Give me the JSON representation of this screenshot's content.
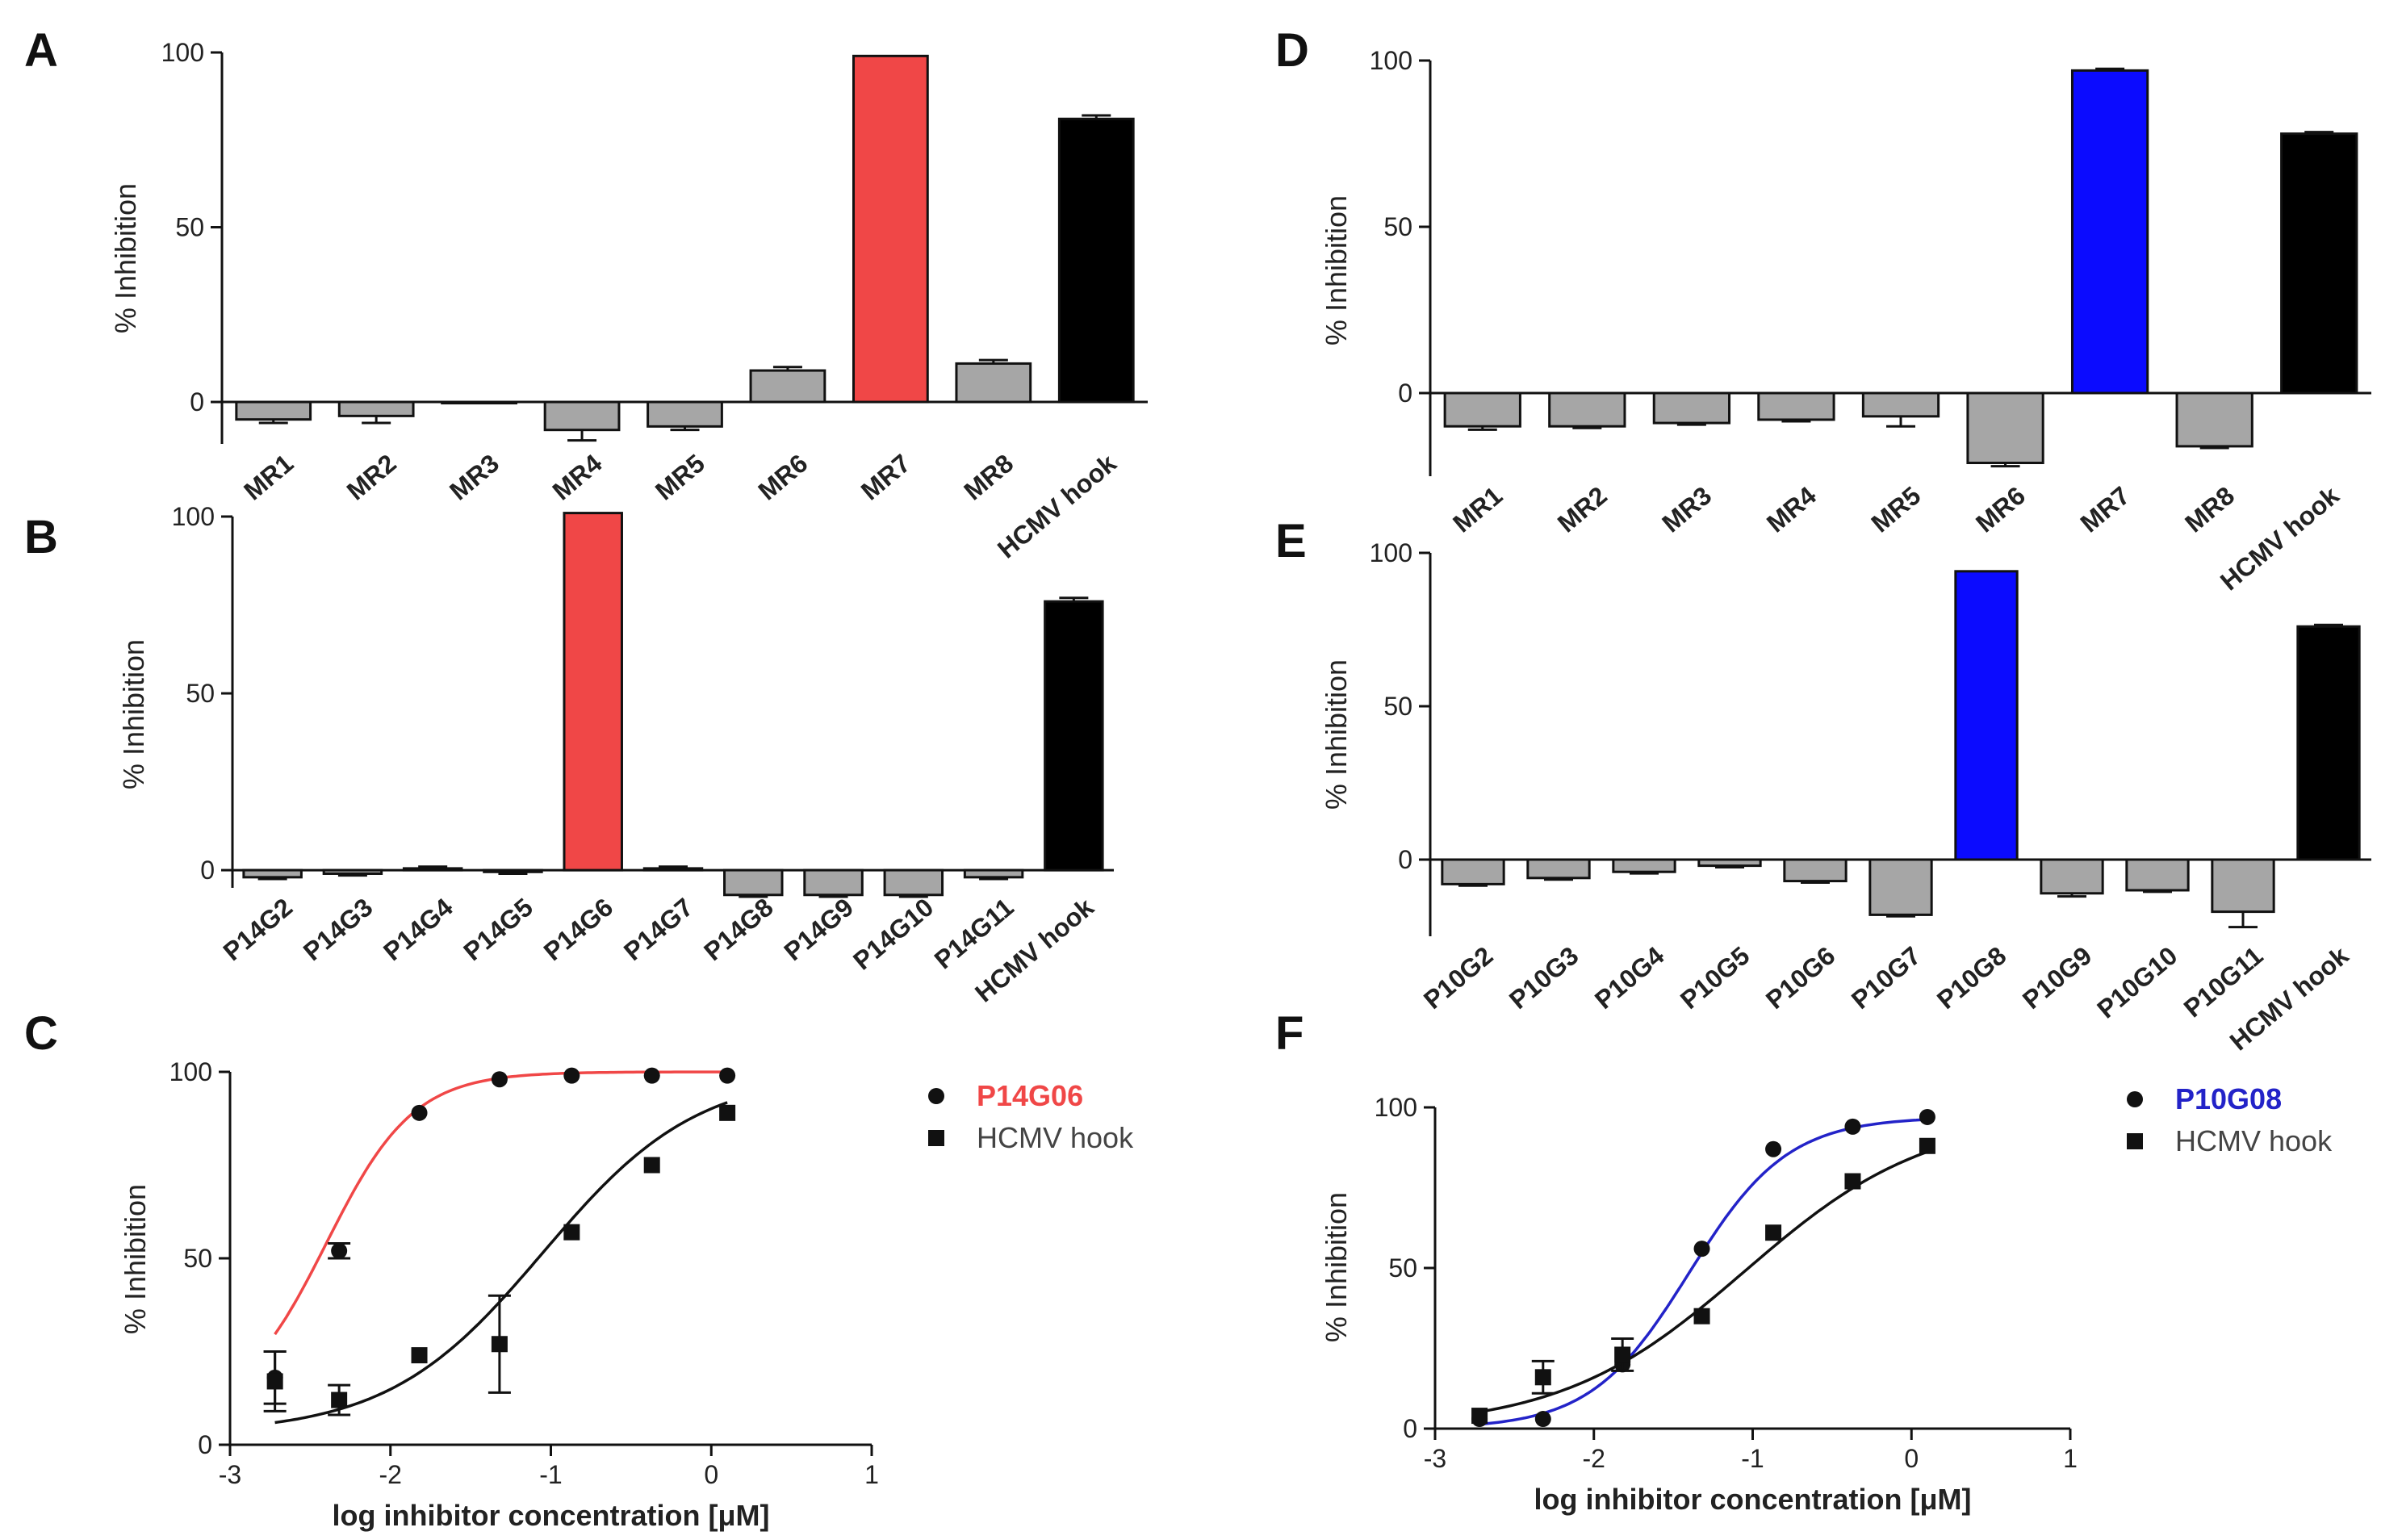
{
  "panels": [
    "A",
    "B",
    "C",
    "D",
    "E",
    "F"
  ],
  "chart_data": [
    {
      "panel": "A",
      "type": "bar",
      "ylabel": "% Inhibition",
      "ylim": [
        -12,
        100
      ],
      "yticks": [
        0,
        50,
        100
      ],
      "categories": [
        "MR1",
        "MR2",
        "MR3",
        "MR4",
        "MR5",
        "MR6",
        "MR7",
        "MR8",
        "HCMV hook"
      ],
      "values": [
        -5,
        -4,
        0,
        -8,
        -7,
        9,
        99,
        11,
        81
      ],
      "errors": [
        1,
        2,
        0,
        3,
        1,
        1,
        0,
        1,
        1
      ],
      "colors": [
        "#a6a6a6",
        "#a6a6a6",
        "#a6a6a6",
        "#a6a6a6",
        "#a6a6a6",
        "#a6a6a6",
        "#f04747",
        "#a6a6a6",
        "#000000"
      ]
    },
    {
      "panel": "B",
      "type": "bar",
      "ylabel": "% Inhibition",
      "ylim": [
        -5,
        100
      ],
      "yticks": [
        0,
        50,
        100
      ],
      "categories": [
        "P14G2",
        "P14G3",
        "P14G4",
        "P14G5",
        "P14G6",
        "P14G7",
        "P14G8",
        "P14G9",
        "P14G10",
        "P14G11",
        "HCMV hook"
      ],
      "values": [
        -2,
        -1,
        0.5,
        -0.5,
        101,
        0.5,
        -7,
        -7,
        -7,
        -2,
        76
      ],
      "errors": [
        0.5,
        0.5,
        0.5,
        0.5,
        0,
        0.5,
        0.5,
        0.5,
        0.5,
        0.5,
        1
      ],
      "colors": [
        "#a6a6a6",
        "#a6a6a6",
        "#a6a6a6",
        "#a6a6a6",
        "#f04747",
        "#a6a6a6",
        "#a6a6a6",
        "#a6a6a6",
        "#a6a6a6",
        "#a6a6a6",
        "#000000"
      ]
    },
    {
      "panel": "C",
      "type": "scatter",
      "xlabel": "log inhibitor concentration [μM]",
      "ylabel": "% Inhibition",
      "xlim": [
        -3,
        1
      ],
      "ylim": [
        0,
        100
      ],
      "xticks": [
        -3,
        -2,
        -1,
        0,
        1
      ],
      "yticks": [
        0,
        50,
        100
      ],
      "series": [
        {
          "name": "P14G06",
          "color": "#f04747",
          "marker": "circle",
          "x": [
            -2.72,
            -2.32,
            -1.82,
            -1.32,
            -0.87,
            -0.37,
            0.1
          ],
          "y": [
            18,
            52,
            89,
            98,
            99,
            99,
            99
          ],
          "err": [
            7,
            2,
            0.5,
            0.5,
            0.5,
            0.5,
            0.5
          ],
          "fit": {
            "bottom": 8,
            "top": 100,
            "logEC50": -2.4,
            "hill": 1.6
          }
        },
        {
          "name": "HCMV hook",
          "color": "#111111",
          "marker": "square",
          "x": [
            -2.72,
            -2.32,
            -1.82,
            -1.32,
            -0.87,
            -0.37,
            0.1
          ],
          "y": [
            17,
            12,
            24,
            27,
            57,
            75,
            89
          ],
          "err": [
            8,
            4,
            0.5,
            13,
            0.5,
            0.5,
            0.5
          ],
          "fit": {
            "bottom": 3,
            "top": 100,
            "logEC50": -1.05,
            "hill": 0.9
          }
        }
      ]
    },
    {
      "panel": "D",
      "type": "bar",
      "ylabel": "% Inhibition",
      "ylim": [
        -25,
        100
      ],
      "yticks": [
        0,
        50,
        100
      ],
      "categories": [
        "MR1",
        "MR2",
        "MR3",
        "MR4",
        "MR5",
        "MR6",
        "MR7",
        "MR8",
        "HCMV hook"
      ],
      "values": [
        -10,
        -10,
        -9,
        -8,
        -7,
        -21,
        97,
        -16,
        78
      ],
      "errors": [
        1,
        0.5,
        0.5,
        0.5,
        3,
        1,
        0.5,
        0.5,
        0.5
      ],
      "colors": [
        "#a6a6a6",
        "#a6a6a6",
        "#a6a6a6",
        "#a6a6a6",
        "#a6a6a6",
        "#a6a6a6",
        "#0b0bff",
        "#a6a6a6",
        "#000000"
      ]
    },
    {
      "panel": "E",
      "type": "bar",
      "ylabel": "% Inhibition",
      "ylim": [
        -25,
        100
      ],
      "yticks": [
        0,
        50,
        100
      ],
      "categories": [
        "P10G2",
        "P10G3",
        "P10G4",
        "P10G5",
        "P10G6",
        "P10G7",
        "P10G8",
        "P10G9",
        "P10G10",
        "P10G11",
        "HCMV hook"
      ],
      "values": [
        -8,
        -6,
        -4,
        -2,
        -7,
        -18,
        94,
        -11,
        -10,
        -17,
        76
      ],
      "errors": [
        0.5,
        0.5,
        0.5,
        0.5,
        0.5,
        0.5,
        0,
        1,
        0.5,
        5,
        0.5
      ],
      "colors": [
        "#a6a6a6",
        "#a6a6a6",
        "#a6a6a6",
        "#a6a6a6",
        "#a6a6a6",
        "#a6a6a6",
        "#0b0bff",
        "#a6a6a6",
        "#a6a6a6",
        "#a6a6a6",
        "#000000"
      ]
    },
    {
      "panel": "F",
      "type": "scatter",
      "xlabel": "log inhibitor concentration [μM]",
      "ylabel": "% Inhibition",
      "xlim": [
        -3,
        1
      ],
      "ylim": [
        0,
        100
      ],
      "xticks": [
        -3,
        -2,
        -1,
        0,
        1
      ],
      "yticks": [
        0,
        50,
        100
      ],
      "series": [
        {
          "name": "P10G08",
          "color": "#2323c8",
          "marker": "circle",
          "x": [
            -2.72,
            -2.32,
            -1.82,
            -1.32,
            -0.87,
            -0.37,
            0.1
          ],
          "y": [
            3,
            3,
            20,
            56,
            87,
            94,
            97
          ],
          "err": [
            0.5,
            0.5,
            0.5,
            0.5,
            0.5,
            0.5,
            0.5
          ],
          "fit": {
            "bottom": 0,
            "top": 97,
            "logEC50": -1.4,
            "hill": 1.4
          }
        },
        {
          "name": "HCMV hook",
          "color": "#111111",
          "marker": "square",
          "x": [
            -2.72,
            -2.32,
            -1.82,
            -1.32,
            -0.87,
            -0.37,
            0.1
          ],
          "y": [
            4,
            16,
            23,
            35,
            61,
            77,
            88
          ],
          "err": [
            1,
            5,
            5,
            0.5,
            0.5,
            0.5,
            0.5
          ],
          "fit": {
            "bottom": 0,
            "top": 98,
            "logEC50": -1.05,
            "hill": 0.75
          }
        }
      ]
    }
  ]
}
